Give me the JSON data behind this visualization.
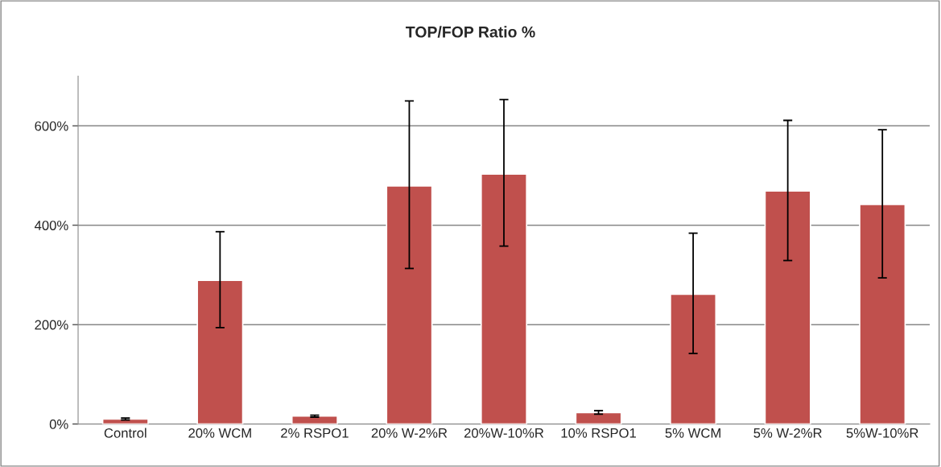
{
  "chart_data": {
    "type": "bar",
    "title": "TOP/FOP Ratio %",
    "categories": [
      "Control",
      "20% WCM",
      "2% RSPO1",
      "20% W-2%R",
      "20%W-10%R",
      "10% RSPO1",
      "5% WCM",
      "5% W-2%R",
      "5%W-10%R"
    ],
    "values": [
      10,
      289,
      16,
      479,
      503,
      23,
      261,
      469,
      442
    ],
    "errors": [
      [
        8,
        12
      ],
      [
        194,
        387
      ],
      [
        14,
        18
      ],
      [
        313,
        650
      ],
      [
        358,
        653
      ],
      [
        20,
        27
      ],
      [
        142,
        384
      ],
      [
        329,
        611
      ],
      [
        294,
        592
      ]
    ],
    "color": "#c0504d",
    "ylim": [
      0,
      700
    ],
    "yticks": [
      {
        "value": 0,
        "label": "0%"
      },
      {
        "value": 200,
        "label": "200%"
      },
      {
        "value": 400,
        "label": "400%"
      },
      {
        "value": 600,
        "label": "600%"
      }
    ],
    "grid": "y",
    "legend": false
  }
}
